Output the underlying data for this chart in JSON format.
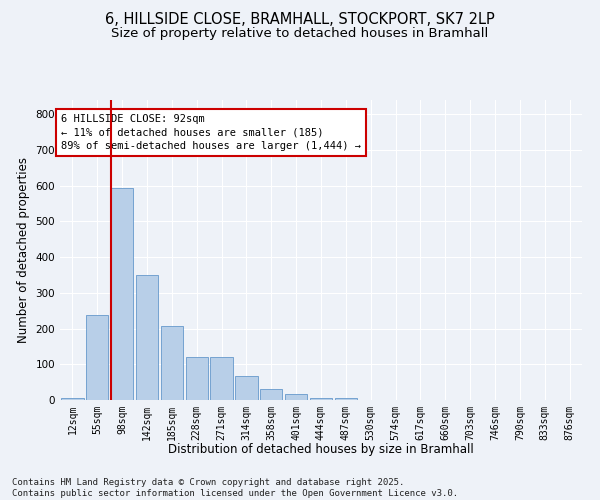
{
  "title_line1": "6, HILLSIDE CLOSE, BRAMHALL, STOCKPORT, SK7 2LP",
  "title_line2": "Size of property relative to detached houses in Bramhall",
  "xlabel": "Distribution of detached houses by size in Bramhall",
  "ylabel": "Number of detached properties",
  "footer_line1": "Contains HM Land Registry data © Crown copyright and database right 2025.",
  "footer_line2": "Contains public sector information licensed under the Open Government Licence v3.0.",
  "categories": [
    "12sqm",
    "55sqm",
    "98sqm",
    "142sqm",
    "185sqm",
    "228sqm",
    "271sqm",
    "314sqm",
    "358sqm",
    "401sqm",
    "444sqm",
    "487sqm",
    "530sqm",
    "574sqm",
    "617sqm",
    "660sqm",
    "703sqm",
    "746sqm",
    "790sqm",
    "833sqm",
    "876sqm"
  ],
  "values": [
    5,
    237,
    595,
    350,
    207,
    120,
    120,
    68,
    30,
    17,
    5,
    5,
    0,
    0,
    0,
    0,
    0,
    0,
    0,
    0,
    0
  ],
  "bar_color": "#b8cfe8",
  "bar_edge_color": "#6699cc",
  "vline_x": 1.57,
  "vline_color": "#cc0000",
  "annotation_text": "6 HILLSIDE CLOSE: 92sqm\n← 11% of detached houses are smaller (185)\n89% of semi-detached houses are larger (1,444) →",
  "annotation_box_color": "#cc0000",
  "ylim": [
    0,
    840
  ],
  "yticks": [
    0,
    100,
    200,
    300,
    400,
    500,
    600,
    700,
    800
  ],
  "background_color": "#eef2f8",
  "plot_bg_color": "#eef2f8",
  "grid_color": "#ffffff",
  "title_fontsize": 10.5,
  "subtitle_fontsize": 9.5,
  "axis_label_fontsize": 8.5,
  "tick_fontsize": 7,
  "footer_fontsize": 6.5
}
